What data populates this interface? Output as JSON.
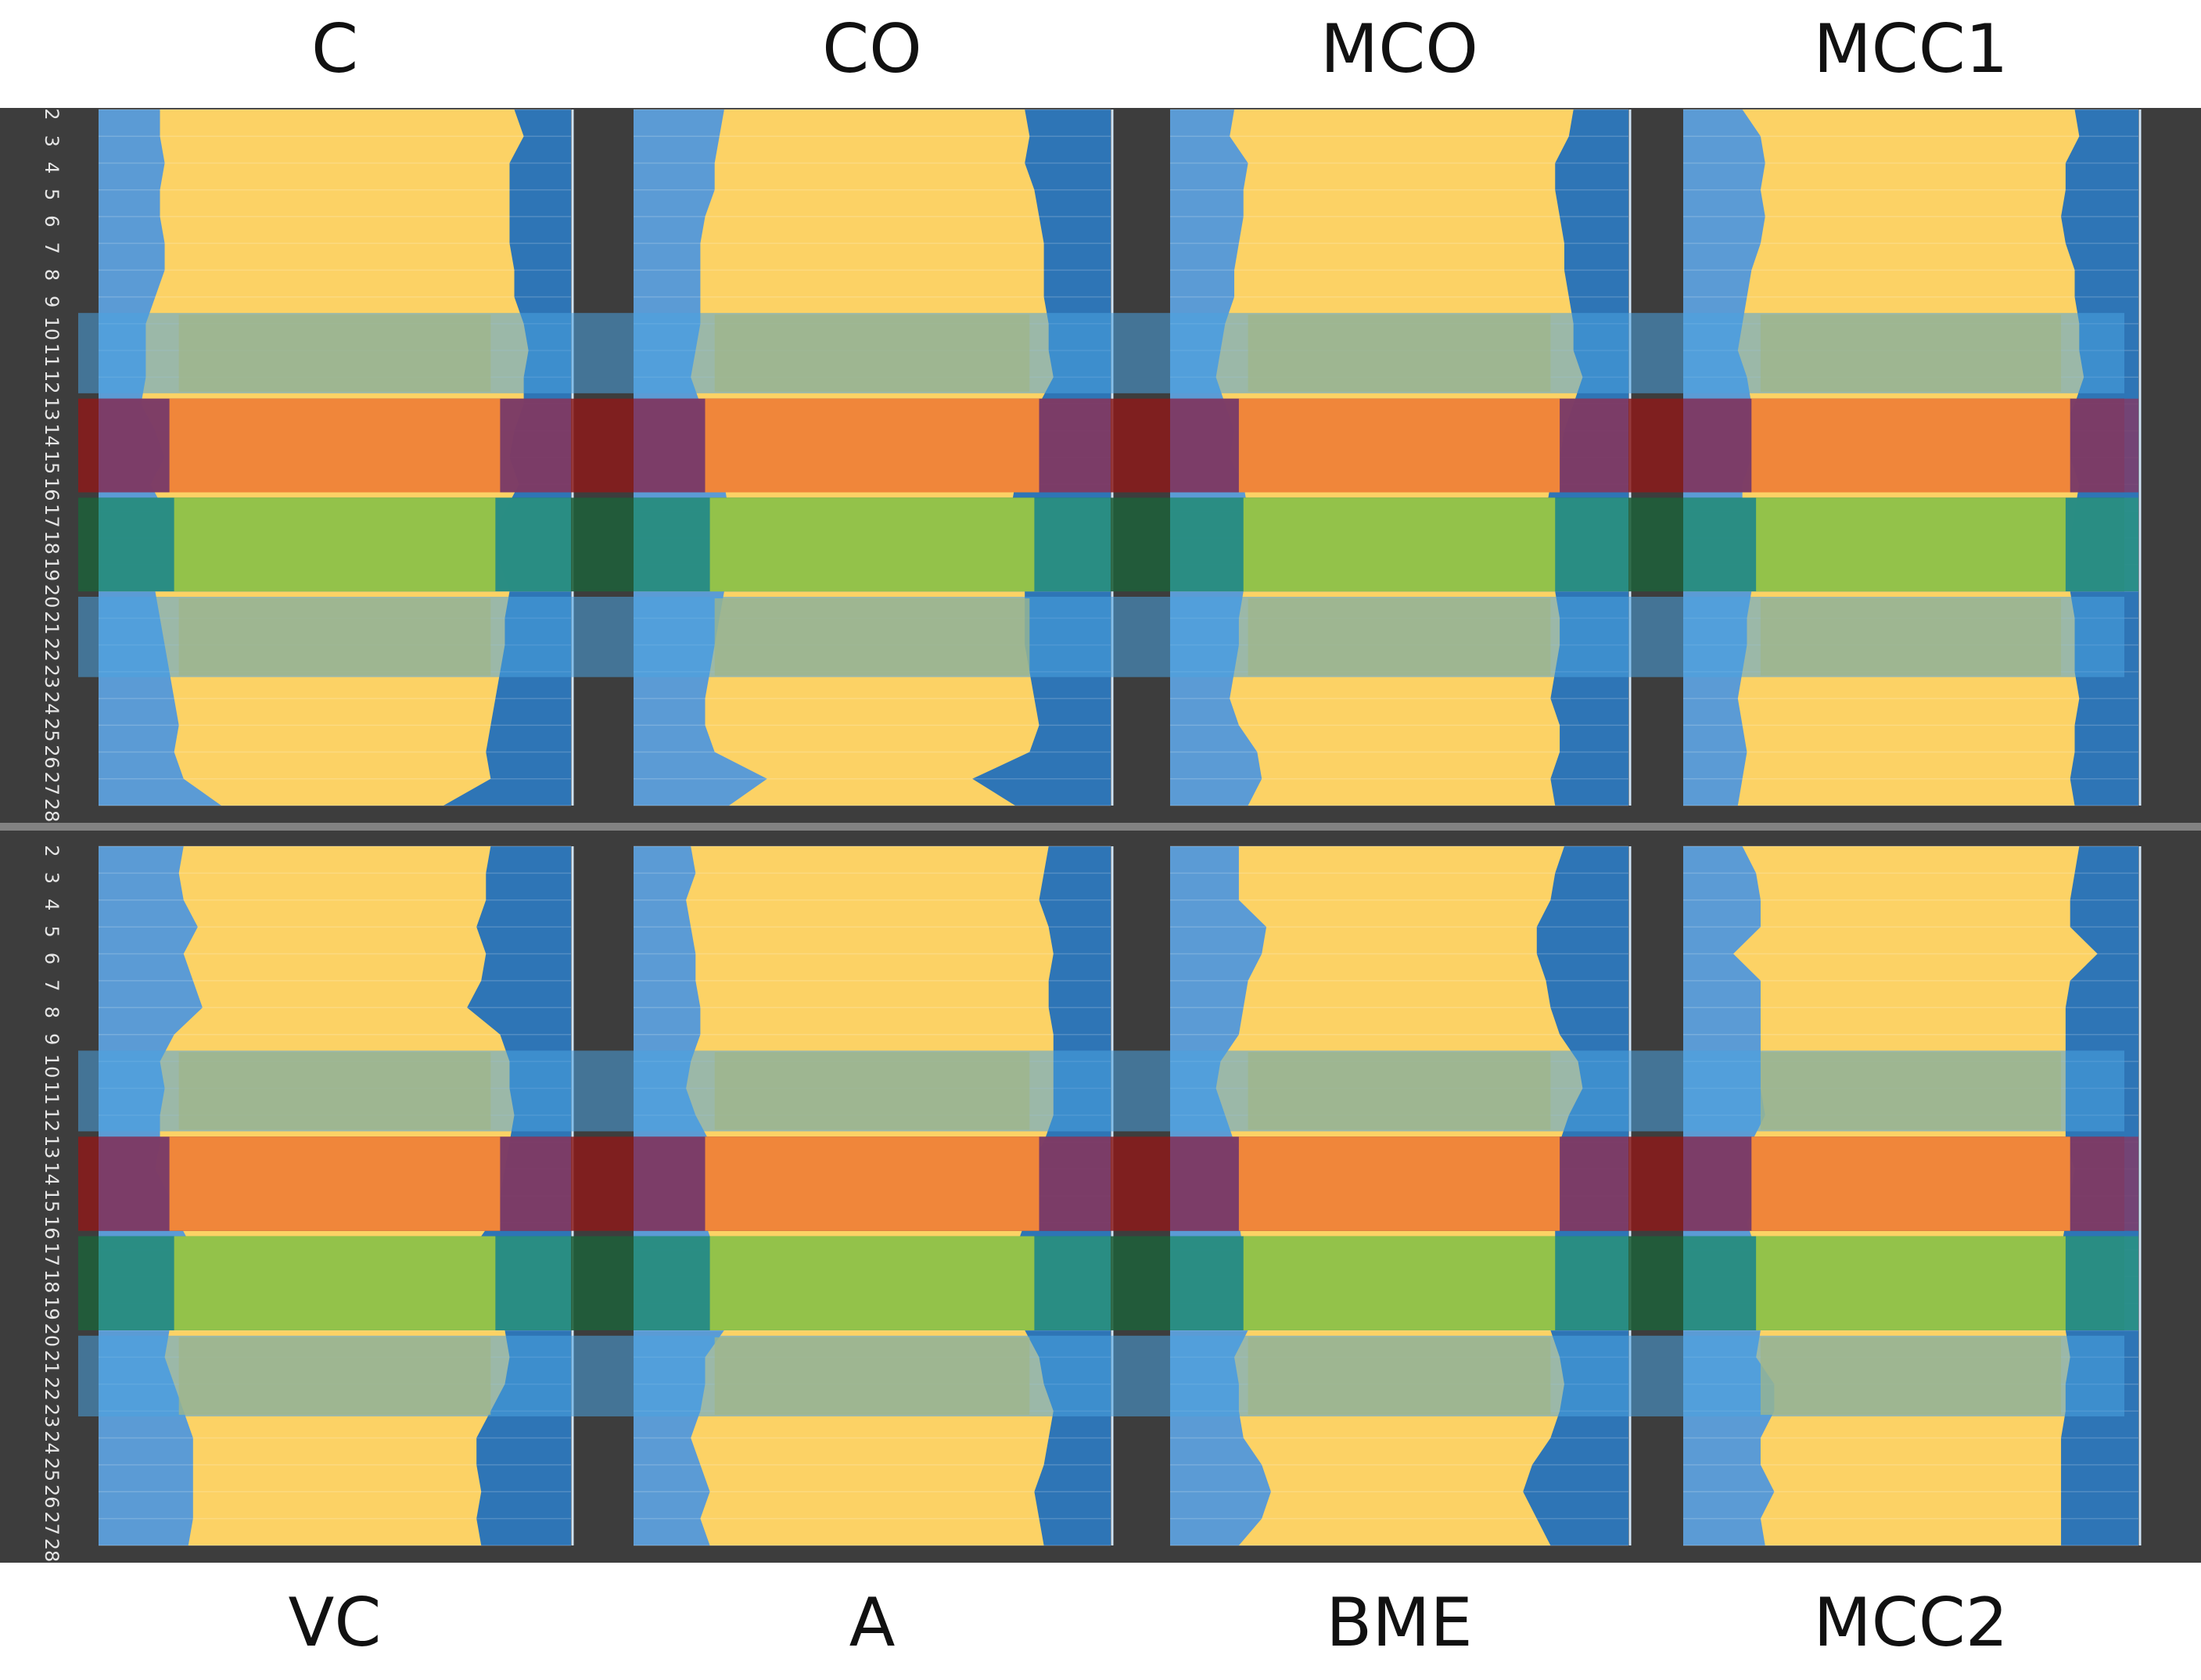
{
  "chart_data": {
    "type": "area",
    "row_labels": [
      "2",
      "3",
      "4",
      "5",
      "6",
      "7",
      "8",
      "9",
      "10",
      "11",
      "12",
      "13",
      "14",
      "15",
      "16",
      "17",
      "18",
      "19",
      "20",
      "21",
      "22",
      "23",
      "24",
      "25",
      "26",
      "27",
      "28"
    ],
    "panels": [
      {
        "title": "C",
        "left": [
          0.13,
          0.13,
          0.14,
          0.13,
          0.13,
          0.14,
          0.14,
          0.12,
          0.1,
          0.1,
          0.1,
          0.09,
          0.12,
          0.14,
          0.11,
          0.14,
          0.16,
          0.14,
          0.12,
          0.13,
          0.14,
          0.15,
          0.16,
          0.17,
          0.16,
          0.18,
          0.26
        ],
        "right": [
          0.12,
          0.1,
          0.13,
          0.13,
          0.13,
          0.13,
          0.12,
          0.12,
          0.1,
          0.09,
          0.1,
          0.1,
          0.12,
          0.13,
          0.11,
          0.14,
          0.17,
          0.15,
          0.13,
          0.14,
          0.14,
          0.15,
          0.16,
          0.17,
          0.18,
          0.17,
          0.27
        ]
      },
      {
        "title": "CO",
        "left": [
          0.19,
          0.18,
          0.17,
          0.17,
          0.15,
          0.14,
          0.14,
          0.14,
          0.14,
          0.13,
          0.12,
          0.14,
          0.17,
          0.17,
          0.19,
          0.2,
          0.21,
          0.2,
          0.19,
          0.18,
          0.17,
          0.16,
          0.15,
          0.15,
          0.17,
          0.28,
          0.2
        ],
        "right": [
          0.18,
          0.17,
          0.18,
          0.16,
          0.15,
          0.14,
          0.14,
          0.14,
          0.13,
          0.13,
          0.12,
          0.15,
          0.17,
          0.2,
          0.2,
          0.21,
          0.2,
          0.2,
          0.18,
          0.18,
          0.18,
          0.17,
          0.16,
          0.15,
          0.17,
          0.29,
          0.2
        ]
      },
      {
        "title": "MCO",
        "left": [
          0.14,
          0.13,
          0.17,
          0.16,
          0.16,
          0.15,
          0.14,
          0.14,
          0.12,
          0.11,
          0.1,
          0.12,
          0.14,
          0.13,
          0.16,
          0.17,
          0.18,
          0.18,
          0.16,
          0.15,
          0.15,
          0.14,
          0.13,
          0.15,
          0.19,
          0.2,
          0.17
        ],
        "right": [
          0.12,
          0.13,
          0.16,
          0.16,
          0.15,
          0.14,
          0.14,
          0.13,
          0.12,
          0.12,
          0.1,
          0.12,
          0.14,
          0.15,
          0.17,
          0.18,
          0.18,
          0.18,
          0.16,
          0.15,
          0.15,
          0.16,
          0.17,
          0.15,
          0.15,
          0.17,
          0.16
        ]
      },
      {
        "title": "MCC1",
        "left": [
          0.13,
          0.17,
          0.18,
          0.17,
          0.18,
          0.17,
          0.15,
          0.14,
          0.13,
          0.12,
          0.14,
          0.15,
          0.18,
          0.15,
          0.13,
          0.13,
          0.16,
          0.17,
          0.15,
          0.14,
          0.14,
          0.13,
          0.12,
          0.13,
          0.14,
          0.13,
          0.12
        ],
        "right": [
          0.14,
          0.13,
          0.16,
          0.16,
          0.17,
          0.16,
          0.14,
          0.14,
          0.13,
          0.13,
          0.12,
          0.14,
          0.17,
          0.15,
          0.13,
          0.14,
          0.15,
          0.16,
          0.15,
          0.14,
          0.14,
          0.14,
          0.13,
          0.14,
          0.14,
          0.15,
          0.14
        ]
      },
      {
        "title": "VC",
        "left": [
          0.18,
          0.17,
          0.18,
          0.21,
          0.18,
          0.2,
          0.22,
          0.16,
          0.13,
          0.14,
          0.13,
          0.13,
          0.12,
          0.15,
          0.17,
          0.2,
          0.25,
          0.23,
          0.15,
          0.14,
          0.16,
          0.18,
          0.2,
          0.2,
          0.2,
          0.2,
          0.19
        ],
        "right": [
          0.17,
          0.18,
          0.18,
          0.2,
          0.18,
          0.19,
          0.22,
          0.15,
          0.13,
          0.13,
          0.12,
          0.13,
          0.14,
          0.15,
          0.17,
          0.21,
          0.25,
          0.23,
          0.14,
          0.13,
          0.14,
          0.17,
          0.2,
          0.2,
          0.19,
          0.2,
          0.19
        ]
      },
      {
        "title": "A",
        "left": [
          0.12,
          0.13,
          0.11,
          0.12,
          0.13,
          0.13,
          0.14,
          0.14,
          0.12,
          0.11,
          0.13,
          0.16,
          0.16,
          0.15,
          0.15,
          0.17,
          0.21,
          0.21,
          0.19,
          0.15,
          0.15,
          0.14,
          0.12,
          0.14,
          0.16,
          0.14,
          0.16
        ],
        "right": [
          0.13,
          0.14,
          0.15,
          0.13,
          0.12,
          0.13,
          0.13,
          0.12,
          0.12,
          0.12,
          0.12,
          0.14,
          0.18,
          0.18,
          0.18,
          0.2,
          0.21,
          0.21,
          0.18,
          0.15,
          0.14,
          0.12,
          0.13,
          0.14,
          0.16,
          0.15,
          0.14
        ]
      },
      {
        "title": "BME",
        "left": [
          0.15,
          0.15,
          0.15,
          0.21,
          0.2,
          0.17,
          0.16,
          0.15,
          0.11,
          0.1,
          0.12,
          0.14,
          0.17,
          0.16,
          0.15,
          0.16,
          0.18,
          0.19,
          0.17,
          0.14,
          0.15,
          0.15,
          0.16,
          0.2,
          0.22,
          0.2,
          0.15
        ],
        "right": [
          0.14,
          0.16,
          0.17,
          0.2,
          0.2,
          0.18,
          0.17,
          0.15,
          0.11,
          0.1,
          0.13,
          0.15,
          0.16,
          0.17,
          0.16,
          0.16,
          0.18,
          0.18,
          0.17,
          0.15,
          0.14,
          0.15,
          0.17,
          0.21,
          0.23,
          0.2,
          0.17
        ],
        "comment": ""
      },
      {
        "title": "MCC2",
        "left": [
          0.13,
          0.16,
          0.17,
          0.17,
          0.11,
          0.17,
          0.17,
          0.17,
          0.17,
          0.17,
          0.18,
          0.15,
          0.17,
          0.17,
          0.14,
          0.16,
          0.18,
          0.18,
          0.17,
          0.16,
          0.2,
          0.2,
          0.17,
          0.17,
          0.2,
          0.17,
          0.18
        ],
        "right": [
          0.13,
          0.14,
          0.15,
          0.15,
          0.09,
          0.15,
          0.16,
          0.16,
          0.16,
          0.16,
          0.16,
          0.16,
          0.14,
          0.15,
          0.16,
          0.17,
          0.18,
          0.17,
          0.16,
          0.15,
          0.16,
          0.16,
          0.17,
          0.17,
          0.17,
          0.17,
          0.17
        ]
      }
    ],
    "colors": {
      "background": "#3d3d3d",
      "outer": "#ffffff",
      "center": "#fcd265",
      "left_area": "#5b9bd5",
      "right_area": "#2e75b6",
      "band_blue": "#4aa3e0",
      "band_orange": "#f0863a",
      "band_green": "#93c24a",
      "band_purple": "#7b3f6e",
      "band_teal": "#2a8f87",
      "band_red": "#8b1a1a",
      "band_darkgreen": "#1f5e3a",
      "band_gray_green": "#9fb68a"
    }
  }
}
